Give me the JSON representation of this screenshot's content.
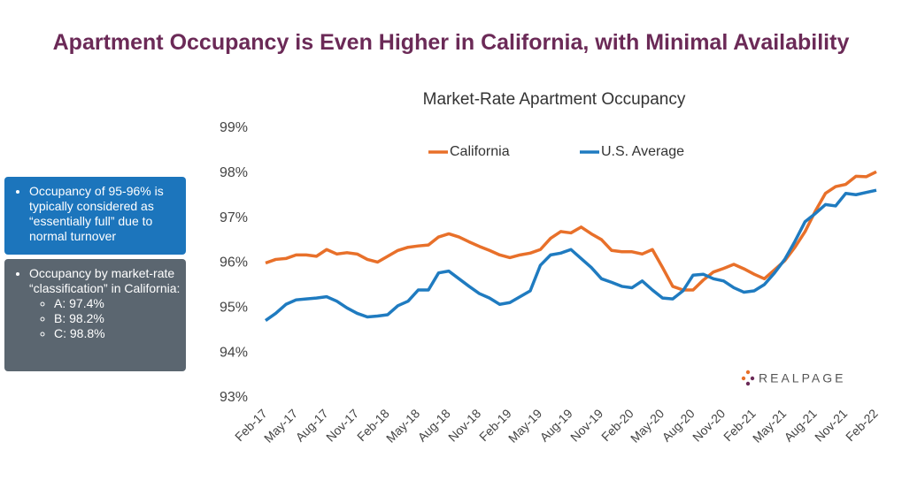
{
  "title": "Apartment Occupancy is Even Higher in California, with Minimal Availability",
  "notes": [
    {
      "text": "Occupancy of 95-96% is typically considered as “essentially full” due to normal turnover",
      "items": []
    },
    {
      "text": "Occupancy by market-rate “classification” in California:",
      "items": [
        "A: 97.4%",
        "B: 98.2%",
        "C: 98.8%"
      ]
    }
  ],
  "logo": "REALPAGE",
  "chart_data": {
    "type": "line",
    "title": "Market-Rate Apartment Occupancy",
    "categories": [
      "Feb-17",
      null,
      null,
      "May-17",
      null,
      null,
      "Aug-17",
      null,
      null,
      "Nov-17",
      null,
      null,
      "Feb-18",
      null,
      null,
      "May-18",
      null,
      null,
      "Aug-18",
      null,
      null,
      "Nov-18",
      null,
      null,
      "Feb-19",
      null,
      null,
      "May-19",
      null,
      null,
      "Aug-19",
      null,
      null,
      "Nov-19",
      null,
      null,
      "Feb-20",
      null,
      null,
      "May-20",
      null,
      null,
      "Aug-20",
      null,
      null,
      "Nov-20",
      null,
      null,
      "Feb-21",
      null,
      null,
      "May-21",
      null,
      null,
      "Aug-21",
      null,
      null,
      "Nov-21",
      null,
      null,
      "Feb-22"
    ],
    "series": [
      {
        "name": "California",
        "color": "#e8702a",
        "values": [
          96.0,
          96.08,
          96.1,
          96.18,
          96.18,
          96.15,
          96.3,
          96.2,
          96.23,
          96.2,
          96.08,
          96.02,
          96.15,
          96.28,
          96.35,
          96.38,
          96.4,
          96.58,
          96.65,
          96.58,
          96.47,
          96.37,
          96.28,
          96.18,
          96.12,
          96.18,
          96.22,
          96.3,
          96.55,
          96.7,
          96.67,
          96.8,
          96.65,
          96.52,
          96.28,
          96.25,
          96.25,
          96.2,
          96.3,
          95.9,
          95.48,
          95.4,
          95.4,
          95.62,
          95.8,
          95.88,
          95.97,
          95.87,
          95.75,
          95.65,
          95.85,
          96.05,
          96.35,
          96.7,
          97.15,
          97.55,
          97.7,
          97.75,
          97.93,
          97.92,
          98.03
        ]
      },
      {
        "name": "U.S. Average",
        "color": "#1f7bc0",
        "values": [
          94.72,
          94.88,
          95.08,
          95.18,
          95.2,
          95.22,
          95.25,
          95.15,
          95.0,
          94.88,
          94.8,
          94.82,
          94.85,
          95.05,
          95.15,
          95.4,
          95.4,
          95.78,
          95.82,
          95.65,
          95.48,
          95.32,
          95.22,
          95.08,
          95.12,
          95.25,
          95.38,
          95.95,
          96.18,
          96.22,
          96.3,
          96.1,
          95.9,
          95.65,
          95.57,
          95.48,
          95.45,
          95.6,
          95.4,
          95.22,
          95.2,
          95.38,
          95.73,
          95.75,
          95.65,
          95.6,
          95.45,
          95.35,
          95.38,
          95.52,
          95.78,
          96.08,
          96.48,
          96.92,
          97.1,
          97.3,
          97.27,
          97.55,
          97.52,
          97.57,
          97.62
        ]
      }
    ],
    "ylim": [
      93,
      99
    ],
    "yticks": [
      {
        "value": 93,
        "label": "93%"
      },
      {
        "value": 94,
        "label": "94%"
      },
      {
        "value": 95,
        "label": "95%"
      },
      {
        "value": 96,
        "label": "96%"
      },
      {
        "value": 97,
        "label": "97%"
      },
      {
        "value": 98,
        "label": "98%"
      },
      {
        "value": 99,
        "label": "99%"
      }
    ],
    "grid": false,
    "legend": "top"
  }
}
